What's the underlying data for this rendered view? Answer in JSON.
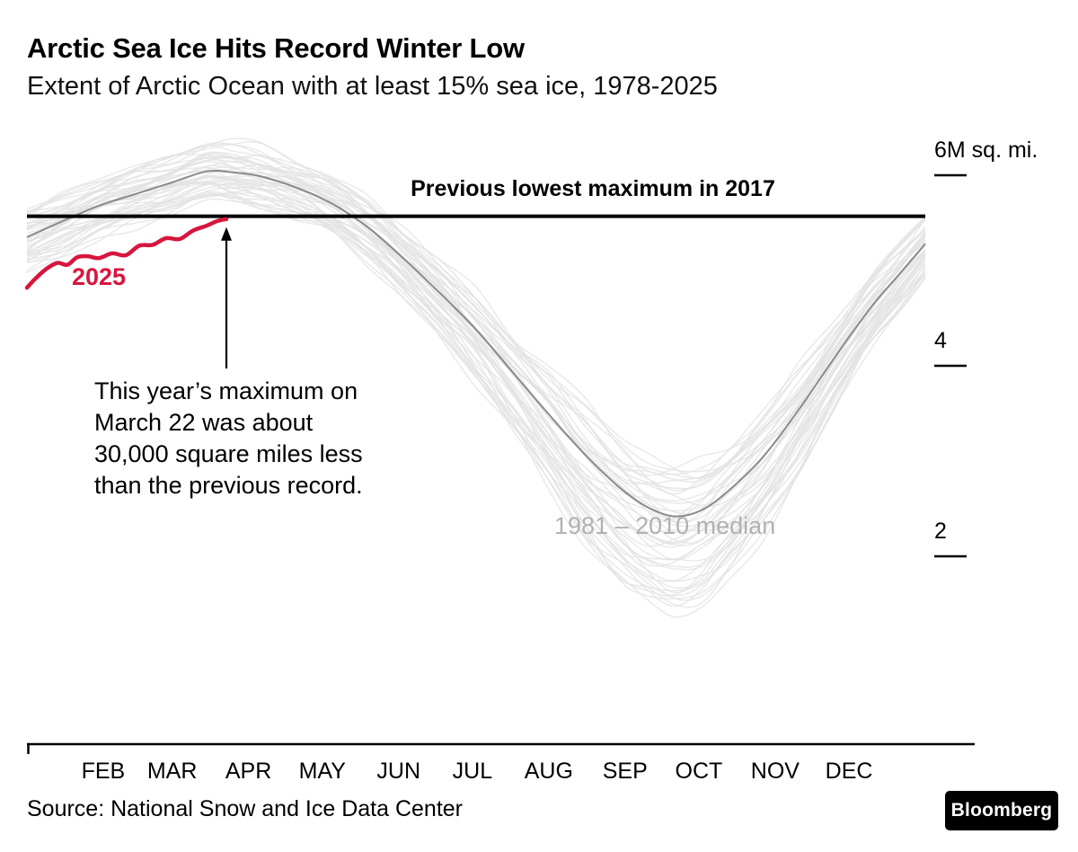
{
  "header": {
    "title": "Arctic Sea Ice Hits Record Winter Low",
    "subtitle": "Extent of Arctic Ocean with at least 15% sea ice, 1978-2025"
  },
  "chart_data": {
    "type": "line",
    "title": "Arctic Sea Ice Hits Record Winter Low",
    "subtitle": "Extent of Arctic Ocean with at least 15% sea ice, 1978-2025",
    "unit": "million square miles",
    "x_unit": "fraction of year (Jan 1 = 0, Dec 31 = 1)",
    "x_labels": [
      "FEB",
      "MAR",
      "APR",
      "MAY",
      "JUN",
      "JUL",
      "AUG",
      "SEP",
      "OCT",
      "NOV",
      "DEC"
    ],
    "y_ticks": [
      {
        "label": "6M sq. mi.",
        "value": 6
      },
      {
        "label": "4",
        "value": 4
      },
      {
        "label": "2",
        "value": 2
      }
    ],
    "ylim": [
      0,
      6.5
    ],
    "grid": false,
    "legend": "inline labels",
    "reference_line": {
      "label": "Previous lowest maximum in 2017",
      "value": 5.57,
      "color": "#000000"
    },
    "series": [
      {
        "name": "1981 – 2010 median",
        "color": "#8a8a8a",
        "x": [
          0,
          0.04,
          0.08,
          0.12,
          0.16,
          0.2,
          0.23,
          0.26,
          0.3,
          0.34,
          0.38,
          0.42,
          0.46,
          0.5,
          0.54,
          0.58,
          0.62,
          0.66,
          0.69,
          0.72,
          0.75,
          0.78,
          0.82,
          0.86,
          0.9,
          0.94,
          0.97,
          1.0
        ],
        "values": [
          5.35,
          5.52,
          5.68,
          5.8,
          5.92,
          6.04,
          6.03,
          5.99,
          5.87,
          5.7,
          5.45,
          5.12,
          4.76,
          4.38,
          3.94,
          3.5,
          3.08,
          2.72,
          2.52,
          2.42,
          2.48,
          2.68,
          3.05,
          3.55,
          4.1,
          4.62,
          4.95,
          5.28
        ]
      },
      {
        "name": "2025",
        "color": "#d6163e",
        "x": [
          0.0,
          0.01,
          0.022,
          0.034,
          0.045,
          0.056,
          0.068,
          0.08,
          0.095,
          0.11,
          0.125,
          0.14,
          0.155,
          0.17,
          0.185,
          0.2,
          0.212,
          0.222
        ],
        "values": [
          4.82,
          4.92,
          5.02,
          5.08,
          5.06,
          5.14,
          5.15,
          5.13,
          5.18,
          5.16,
          5.26,
          5.27,
          5.34,
          5.33,
          5.42,
          5.47,
          5.52,
          5.54
        ]
      }
    ],
    "background_years": {
      "description": "individual years 1978–2024 shown as light gray lines",
      "count": 46,
      "color": "#e2e2e2",
      "winter_spread": 0.55,
      "summer_spread": 1.55
    },
    "annotation": {
      "text": "This year’s maximum on\nMarch 22 was about\n30,000 square miles less\nthan the previous record.",
      "arrow_points_to": {
        "x": 0.222,
        "value": 5.54
      }
    }
  },
  "footer": {
    "source": "Source: National Snow and Ice Data Center",
    "logo": "Bloomberg"
  }
}
